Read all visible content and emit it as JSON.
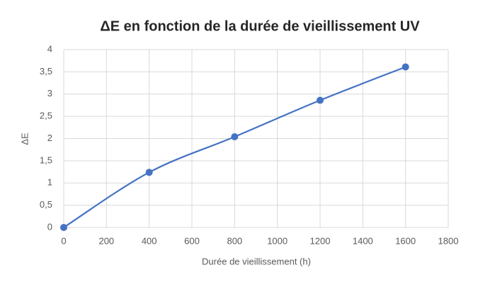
{
  "chart_data": {
    "type": "line",
    "title": "ΔE en fonction de la durée de vieillissement UV",
    "x_label": "Durée de vieillissement (h)",
    "y_label": "ΔE",
    "x": [
      0,
      400,
      800,
      1200,
      1600
    ],
    "series": [
      {
        "name": "ΔE",
        "color": "#4472c4",
        "values": [
          0,
          1.24,
          2.04,
          2.86,
          3.61
        ]
      }
    ],
    "xlim": [
      0,
      1800
    ],
    "xticks": [
      0,
      200,
      400,
      600,
      800,
      1000,
      1200,
      1400,
      1600,
      1800
    ],
    "ylim": [
      0,
      4
    ],
    "yticks": [
      0,
      {
        "value": 0.5,
        "label": "0,5"
      },
      1,
      {
        "value": 1.5,
        "label": "1,5"
      },
      2,
      {
        "value": 2.5,
        "label": "2,5"
      },
      3,
      {
        "value": 3.5,
        "label": "3,5"
      },
      4
    ],
    "grid": true,
    "smooth": true
  }
}
